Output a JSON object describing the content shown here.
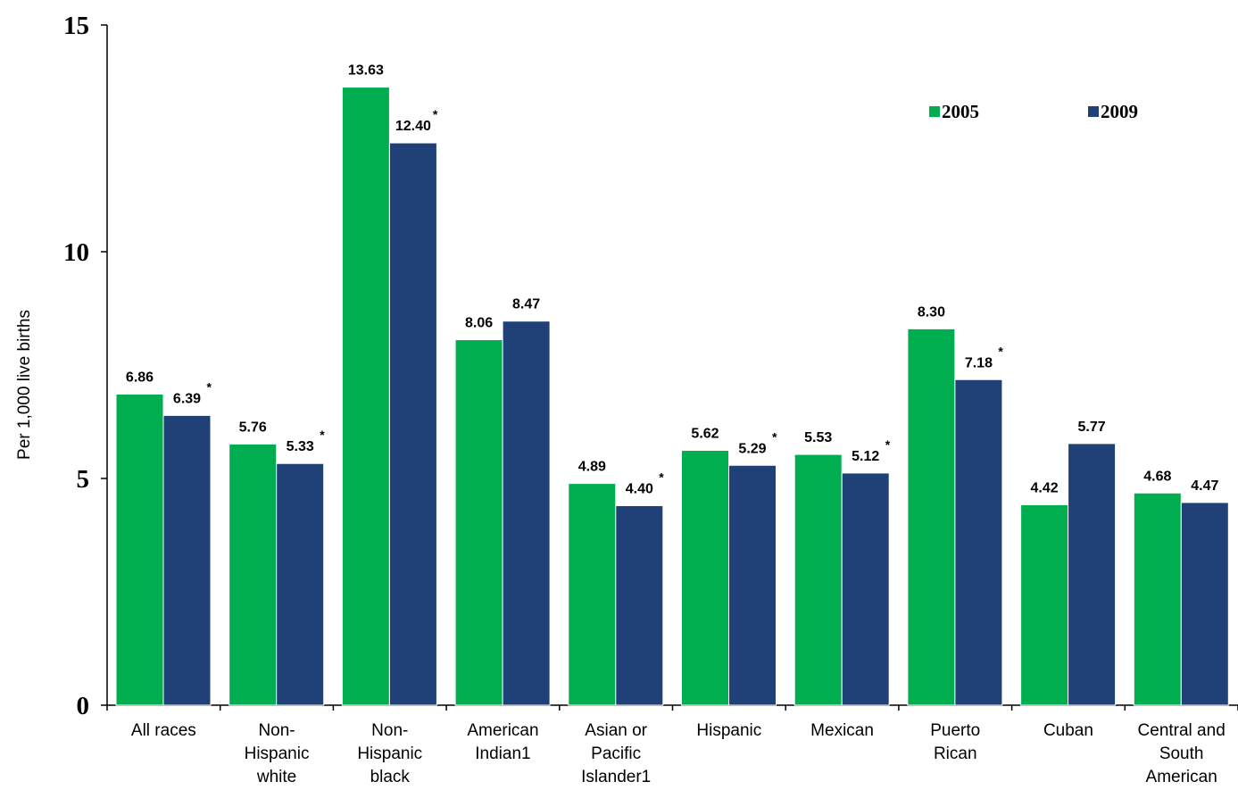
{
  "chart_data": {
    "type": "bar",
    "ylabel": "Per 1,000 live births",
    "ylim": [
      0,
      15
    ],
    "yticks": [
      0,
      5,
      10,
      15
    ],
    "grid": false,
    "legend_position": "top-right",
    "categories": [
      "All races",
      "Non-Hispanic white",
      "Non-Hispanic black",
      "American Indian1",
      "Asian or Pacific Islander1",
      "Hispanic",
      "Mexican",
      "Puerto Rican",
      "Cuban",
      "Central and South American"
    ],
    "category_lines": [
      [
        "All races"
      ],
      [
        "Non-",
        "Hispanic",
        "white"
      ],
      [
        "Non-",
        "Hispanic",
        "black"
      ],
      [
        "American",
        "Indian1"
      ],
      [
        "Asian or",
        "Pacific",
        "Islander1"
      ],
      [
        "Hispanic"
      ],
      [
        "Mexican"
      ],
      [
        "Puerto",
        "Rican"
      ],
      [
        "Cuban"
      ],
      [
        "Central and",
        "South",
        "American"
      ]
    ],
    "series": [
      {
        "name": "2005",
        "color": "#00ae4f",
        "values": [
          6.86,
          5.76,
          13.63,
          8.06,
          4.89,
          5.62,
          5.53,
          8.3,
          4.42,
          4.68
        ],
        "labels": [
          "6.86",
          "5.76",
          "13.63",
          "8.06",
          "4.89",
          "5.62",
          "5.53",
          "8.30",
          "4.42",
          "4.68"
        ],
        "significant": [
          false,
          false,
          false,
          false,
          false,
          false,
          false,
          false,
          false,
          false
        ]
      },
      {
        "name": "2009",
        "color": "#1f4177",
        "values": [
          6.39,
          5.33,
          12.4,
          8.47,
          4.4,
          5.29,
          5.12,
          7.18,
          5.77,
          4.47
        ],
        "labels": [
          "6.39",
          "5.33",
          "12.40",
          "8.47",
          "4.40",
          "5.29",
          "5.12",
          "7.18",
          "5.77",
          "4.47"
        ],
        "significant": [
          true,
          true,
          true,
          false,
          true,
          true,
          true,
          true,
          false,
          false
        ]
      }
    ],
    "significance_marker": "*"
  }
}
